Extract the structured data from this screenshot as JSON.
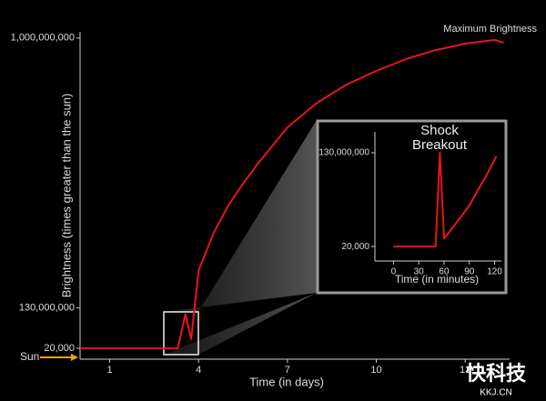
{
  "chart_data": [
    {
      "type": "line",
      "y_label": "Brightness  (times greater than the sun)",
      "x_label": "Time (in days)",
      "annotations": [
        "Maximum Brightness",
        "Sun"
      ],
      "x": [
        0,
        0.5,
        1,
        1.5,
        2,
        2.5,
        3,
        3.3,
        3.55,
        3.75,
        4,
        4.5,
        5,
        5.5,
        6,
        7,
        8,
        9,
        10,
        11,
        12,
        13,
        14,
        14.3
      ],
      "values": [
        20000,
        20000,
        20000,
        20000,
        20000,
        20000,
        20000,
        20000,
        110000000,
        30000000,
        250000000,
        370000000,
        460000000,
        530000000,
        595000000,
        712000000,
        791000000,
        850000000,
        894000000,
        932000000,
        961000000,
        982000000,
        994000000,
        985000000
      ],
      "color": "#e8141c",
      "xlim": [
        0,
        14.5
      ],
      "ylim": [
        -35000000,
        1020000000
      ],
      "xticks": [
        1,
        4,
        7,
        10,
        13
      ],
      "yticks": [
        {
          "value": 20000,
          "label": "20,000"
        },
        {
          "value": 130000000,
          "label": "130,000,000"
        },
        {
          "value": 1000000000,
          "label": "1,000,000,000"
        }
      ]
    },
    {
      "type": "line",
      "x_label": "Time (in minutes)",
      "annotations": [
        "Shock Breakout"
      ],
      "x": [
        0,
        10,
        20,
        30,
        40,
        50,
        55,
        60,
        70,
        80,
        90,
        100,
        110,
        122
      ],
      "values": [
        20000,
        20000,
        20000,
        20000,
        20000,
        20000,
        130000000,
        11000000,
        26000000,
        41000000,
        57000000,
        78000000,
        98000000,
        125000000
      ],
      "color": "#e8141c",
      "xlim": [
        -22,
        128
      ],
      "ylim": [
        -20000000,
        159000000
      ],
      "xticks": [
        0,
        30,
        60,
        90,
        120
      ],
      "yticks": [
        {
          "value": 20000,
          "label": "20,000"
        },
        {
          "value": 130000000,
          "label": "130,000,000"
        }
      ]
    }
  ],
  "watermark": [
    "快科技",
    "KKJ.CN"
  ]
}
